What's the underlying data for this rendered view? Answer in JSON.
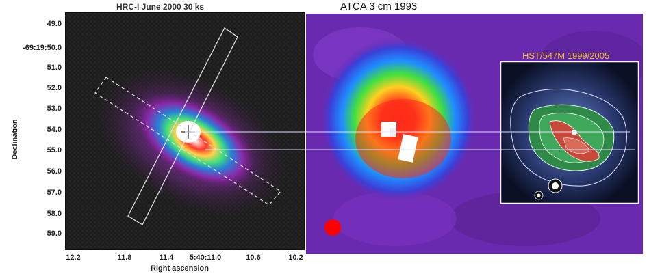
{
  "left_panel": {
    "title": "HRC-I  June 2000  30 ks",
    "ylabel": "Declination",
    "xlabel": "Right ascension",
    "yticks": [
      "49.0",
      "-69:19:50.0",
      "51.0",
      "52.0",
      "53.0",
      "54.0",
      "55.0",
      "56.0",
      "57.0",
      "58.0",
      "59.0"
    ],
    "xticks": [
      "12.2",
      "11.8",
      "11.4",
      "5:40:11.0",
      "10.6",
      "10.2"
    ]
  },
  "radio_panel": {
    "title": "ATCA 3 cm 1993"
  },
  "inset": {
    "title": "HST/547M 1999/2005",
    "title_color": "#f0c020"
  },
  "colors": {
    "background_dark": "#1c1c1c",
    "radio_background": "#6a2ab0",
    "beam": "#ff0000"
  }
}
